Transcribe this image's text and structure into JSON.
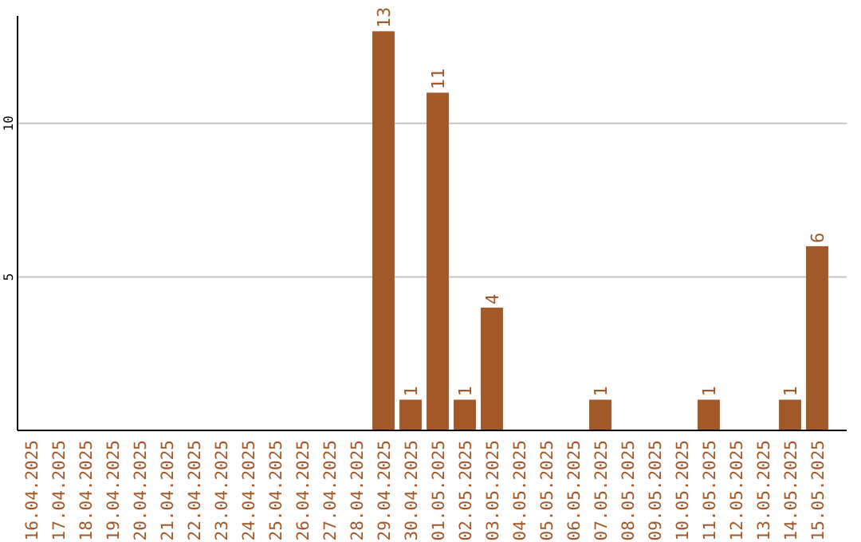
{
  "chart_data": {
    "type": "bar",
    "categories": [
      "16.04.2025",
      "17.04.2025",
      "18.04.2025",
      "19.04.2025",
      "20.04.2025",
      "21.04.2025",
      "22.04.2025",
      "23.04.2025",
      "24.04.2025",
      "25.04.2025",
      "26.04.2025",
      "27.04.2025",
      "28.04.2025",
      "29.04.2025",
      "30.04.2025",
      "01.05.2025",
      "02.05.2025",
      "03.05.2025",
      "04.05.2025",
      "05.05.2025",
      "06.05.2025",
      "07.05.2025",
      "08.05.2025",
      "09.05.2025",
      "10.05.2025",
      "11.05.2025",
      "12.05.2025",
      "13.05.2025",
      "14.05.2025",
      "15.05.2025"
    ],
    "values": [
      0,
      0,
      0,
      0,
      0,
      0,
      0,
      0,
      0,
      0,
      0,
      0,
      0,
      13,
      1,
      11,
      1,
      4,
      0,
      0,
      0,
      1,
      0,
      0,
      0,
      1,
      0,
      0,
      1,
      6
    ],
    "value_labels": [
      null,
      null,
      null,
      null,
      null,
      null,
      null,
      null,
      null,
      null,
      null,
      null,
      null,
      "13",
      "1",
      "11",
      "1",
      "4",
      null,
      null,
      null,
      "1",
      null,
      null,
      null,
      "1",
      null,
      null,
      "1",
      "6"
    ],
    "color": "#a25828",
    "ylim": [
      0,
      13.5
    ],
    "yticks": [
      5,
      10
    ],
    "grid": "y"
  }
}
